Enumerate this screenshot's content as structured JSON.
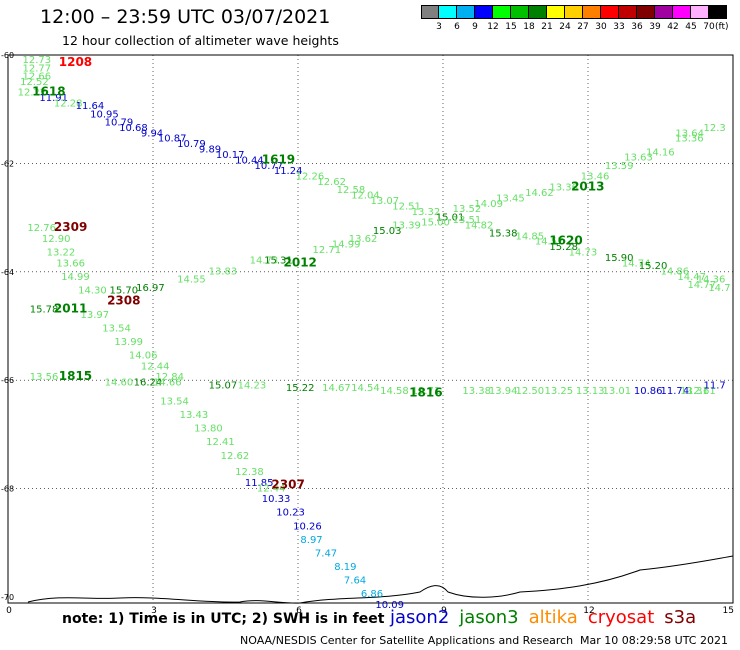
{
  "header": {
    "title": "12:00 – 23:59 UTC 03/07/2021",
    "subtitle": "12 hour collection of altimeter wave heights"
  },
  "scale": {
    "unit": "(ft)",
    "bins": [
      {
        "label": "3",
        "color": "#808080"
      },
      {
        "label": "6",
        "color": "#00ffff"
      },
      {
        "label": "9",
        "color": "#00b0f0"
      },
      {
        "label": "12",
        "color": "#0000ff"
      },
      {
        "label": "15",
        "color": "#00ff00"
      },
      {
        "label": "18",
        "color": "#00c000"
      },
      {
        "label": "21",
        "color": "#008000"
      },
      {
        "label": "24",
        "color": "#ffff00"
      },
      {
        "label": "27",
        "color": "#ffd000"
      },
      {
        "label": "30",
        "color": "#ff8000"
      },
      {
        "label": "33",
        "color": "#ff0000"
      },
      {
        "label": "36",
        "color": "#c00000"
      },
      {
        "label": "39",
        "color": "#800000"
      },
      {
        "label": "42",
        "color": "#a000a0"
      },
      {
        "label": "45",
        "color": "#ff00ff"
      },
      {
        "label": "70",
        "color": "#ffb0ff"
      },
      {
        "label": "",
        "color": "#000000"
      }
    ]
  },
  "axes": {
    "x_ticks": [
      "0",
      "3",
      "6",
      "9",
      "12",
      "15"
    ],
    "y_ticks": [
      "-60",
      "-62",
      "-64",
      "-66",
      "-68",
      "-70"
    ]
  },
  "map": {
    "lon_range": [
      0,
      15
    ],
    "lat_range": [
      -60,
      -70
    ],
    "colors": {
      "blue": "#0000cc",
      "cyan": "#00a8e0",
      "lightgreen": "#66e066",
      "green": "#008000",
      "darkred": "#800000",
      "red": "#ff0000"
    },
    "time_labels": [
      {
        "text": "1208",
        "lon": 1.05,
        "lat": -60.2,
        "color": "red"
      },
      {
        "text": "1618",
        "lon": 0.5,
        "lat": -60.75,
        "color": "green"
      },
      {
        "text": "1619",
        "lon": 5.25,
        "lat": -62.0,
        "color": "green"
      },
      {
        "text": "2013",
        "lon": 11.65,
        "lat": -62.5,
        "color": "green"
      },
      {
        "text": "2309",
        "lon": 0.95,
        "lat": -63.25,
        "color": "darkred"
      },
      {
        "text": "1620",
        "lon": 11.2,
        "lat": -63.5,
        "color": "green"
      },
      {
        "text": "2012",
        "lon": 5.7,
        "lat": -63.9,
        "color": "green"
      },
      {
        "text": "2308",
        "lon": 2.05,
        "lat": -64.6,
        "color": "darkred"
      },
      {
        "text": "2011",
        "lon": 0.95,
        "lat": -64.75,
        "color": "green"
      },
      {
        "text": "1815",
        "lon": 1.05,
        "lat": -66.0,
        "color": "green"
      },
      {
        "text": "1816",
        "lon": 8.3,
        "lat": -66.3,
        "color": "green"
      },
      {
        "text": "2307",
        "lon": 5.45,
        "lat": -68.0,
        "color": "darkred"
      }
    ],
    "value_labels": [
      {
        "text": "12.73",
        "lon": 0.3,
        "lat": -60.15,
        "color": "lightgreen"
      },
      {
        "text": "12.77",
        "lon": 0.3,
        "lat": -60.3,
        "color": "lightgreen"
      },
      {
        "text": "12.66",
        "lon": 0.3,
        "lat": -60.45,
        "color": "lightgreen"
      },
      {
        "text": "12.52",
        "lon": 0.25,
        "lat": -60.55,
        "color": "lightgreen"
      },
      {
        "text": "12.22",
        "lon": 0.2,
        "lat": -60.75,
        "color": "lightgreen"
      },
      {
        "text": "11.91",
        "lon": 0.65,
        "lat": -60.85,
        "color": "blue"
      },
      {
        "text": "12.28",
        "lon": 0.95,
        "lat": -60.95,
        "color": "lightgreen"
      },
      {
        "text": "11.64",
        "lon": 1.4,
        "lat": -61.0,
        "color": "blue"
      },
      {
        "text": "10.95",
        "lon": 1.7,
        "lat": -61.15,
        "color": "blue"
      },
      {
        "text": "10.79",
        "lon": 2.0,
        "lat": -61.3,
        "color": "blue"
      },
      {
        "text": "10.68",
        "lon": 2.3,
        "lat": -61.4,
        "color": "blue"
      },
      {
        "text": "9.94",
        "lon": 2.75,
        "lat": -61.5,
        "color": "blue"
      },
      {
        "text": "10.87",
        "lon": 3.1,
        "lat": -61.6,
        "color": "blue"
      },
      {
        "text": "10.79",
        "lon": 3.5,
        "lat": -61.7,
        "color": "blue"
      },
      {
        "text": "9.89",
        "lon": 3.95,
        "lat": -61.8,
        "color": "blue"
      },
      {
        "text": "10.17",
        "lon": 4.3,
        "lat": -61.9,
        "color": "blue"
      },
      {
        "text": "10.44",
        "lon": 4.7,
        "lat": -62.0,
        "color": "blue"
      },
      {
        "text": "10.77",
        "lon": 5.1,
        "lat": -62.1,
        "color": "blue"
      },
      {
        "text": "11.24",
        "lon": 5.5,
        "lat": -62.2,
        "color": "blue"
      },
      {
        "text": "12.26",
        "lon": 5.95,
        "lat": -62.3,
        "color": "lightgreen"
      },
      {
        "text": "12.62",
        "lon": 6.4,
        "lat": -62.4,
        "color": "lightgreen"
      },
      {
        "text": "12.58",
        "lon": 6.8,
        "lat": -62.55,
        "color": "lightgreen"
      },
      {
        "text": "12.04",
        "lon": 7.1,
        "lat": -62.65,
        "color": "lightgreen"
      },
      {
        "text": "13.07",
        "lon": 7.5,
        "lat": -62.75,
        "color": "lightgreen"
      },
      {
        "text": "12.51",
        "lon": 7.95,
        "lat": -62.85,
        "color": "lightgreen"
      },
      {
        "text": "13.32",
        "lon": 8.35,
        "lat": -62.95,
        "color": "lightgreen"
      },
      {
        "text": "15.01",
        "lon": 8.85,
        "lat": -63.05,
        "color": "green"
      },
      {
        "text": "13.51",
        "lon": 9.2,
        "lat": -63.1,
        "color": "lightgreen"
      },
      {
        "text": "14.82",
        "lon": 9.45,
        "lat": -63.2,
        "color": "lightgreen"
      },
      {
        "text": "15.38",
        "lon": 9.95,
        "lat": -63.35,
        "color": "green"
      },
      {
        "text": "14.85",
        "lon": 10.5,
        "lat": -63.4,
        "color": "lightgreen"
      },
      {
        "text": "14.57",
        "lon": 10.9,
        "lat": -63.5,
        "color": "lightgreen"
      },
      {
        "text": "15.28",
        "lon": 11.2,
        "lat": -63.6,
        "color": "green"
      },
      {
        "text": "14.73",
        "lon": 11.6,
        "lat": -63.7,
        "color": "lightgreen"
      },
      {
        "text": "15.90",
        "lon": 12.35,
        "lat": -63.8,
        "color": "green"
      },
      {
        "text": "14.74",
        "lon": 12.7,
        "lat": -63.9,
        "color": "lightgreen"
      },
      {
        "text": "15.20",
        "lon": 13.05,
        "lat": -63.95,
        "color": "green"
      },
      {
        "text": "14.86",
        "lon": 13.5,
        "lat": -64.05,
        "color": "lightgreen"
      },
      {
        "text": "14.47",
        "lon": 13.85,
        "lat": -64.15,
        "color": "lightgreen"
      },
      {
        "text": "14.36",
        "lon": 14.25,
        "lat": -64.2,
        "color": "lightgreen"
      },
      {
        "text": "14.77",
        "lon": 14.65,
        "lat": -64.3,
        "color": "lightgreen"
      },
      {
        "text": "14.7",
        "lon": 14.95,
        "lat": -64.35,
        "color": "lightgreen"
      },
      {
        "text": "12.76",
        "lon": 0.4,
        "lat": -63.25,
        "color": "lightgreen"
      },
      {
        "text": "12.90",
        "lon": 0.7,
        "lat": -63.45,
        "color": "lightgreen"
      },
      {
        "text": "13.22",
        "lon": 0.8,
        "lat": -63.7,
        "color": "lightgreen"
      },
      {
        "text": "13.66",
        "lon": 1.0,
        "lat": -63.9,
        "color": "lightgreen"
      },
      {
        "text": "14.99",
        "lon": 1.1,
        "lat": -64.15,
        "color": "lightgreen"
      },
      {
        "text": "14.30",
        "lon": 1.45,
        "lat": -64.4,
        "color": "lightgreen"
      },
      {
        "text": "15.70",
        "lon": 2.1,
        "lat": -64.4,
        "color": "green"
      },
      {
        "text": "16.97",
        "lon": 2.65,
        "lat": -64.35,
        "color": "green"
      },
      {
        "text": "15.78",
        "lon": 0.45,
        "lat": -64.75,
        "color": "green"
      },
      {
        "text": "13.97",
        "lon": 1.5,
        "lat": -64.85,
        "color": "lightgreen"
      },
      {
        "text": "13.54",
        "lon": 1.95,
        "lat": -65.1,
        "color": "lightgreen"
      },
      {
        "text": "13.99",
        "lon": 2.2,
        "lat": -65.35,
        "color": "lightgreen"
      },
      {
        "text": "14.06",
        "lon": 2.5,
        "lat": -65.6,
        "color": "lightgreen"
      },
      {
        "text": "12.44",
        "lon": 2.75,
        "lat": -65.8,
        "color": "lightgreen"
      },
      {
        "text": "12.84",
        "lon": 3.05,
        "lat": -66.0,
        "color": "lightgreen"
      },
      {
        "text": "14.55",
        "lon": 3.5,
        "lat": -64.2,
        "color": "lightgreen"
      },
      {
        "text": "13.83",
        "lon": 4.15,
        "lat": -64.05,
        "color": "lightgreen"
      },
      {
        "text": "14.73",
        "lon": 5.0,
        "lat": -63.85,
        "color": "lightgreen"
      },
      {
        "text": "15.31",
        "lon": 5.3,
        "lat": -63.85,
        "color": "green"
      },
      {
        "text": "12.71",
        "lon": 6.3,
        "lat": -63.65,
        "color": "lightgreen"
      },
      {
        "text": "14.99",
        "lon": 6.7,
        "lat": -63.55,
        "color": "lightgreen"
      },
      {
        "text": "13.62",
        "lon": 7.05,
        "lat": -63.45,
        "color": "lightgreen"
      },
      {
        "text": "15.03",
        "lon": 7.55,
        "lat": -63.3,
        "color": "green"
      },
      {
        "text": "13.39",
        "lon": 7.95,
        "lat": -63.2,
        "color": "lightgreen"
      },
      {
        "text": "15.00",
        "lon": 8.55,
        "lat": -63.15,
        "color": "lightgreen"
      },
      {
        "text": "13.52",
        "lon": 9.2,
        "lat": -62.9,
        "color": "lightgreen"
      },
      {
        "text": "14.09",
        "lon": 9.65,
        "lat": -62.8,
        "color": "lightgreen"
      },
      {
        "text": "13.45",
        "lon": 10.1,
        "lat": -62.7,
        "color": "lightgreen"
      },
      {
        "text": "14.62",
        "lon": 10.7,
        "lat": -62.6,
        "color": "lightgreen"
      },
      {
        "text": "13.36",
        "lon": 11.2,
        "lat": -62.5,
        "color": "lightgreen"
      },
      {
        "text": "13.46",
        "lon": 11.85,
        "lat": -62.3,
        "color": "lightgreen"
      },
      {
        "text": "13.59",
        "lon": 12.35,
        "lat": -62.1,
        "color": "lightgreen"
      },
      {
        "text": "13.63",
        "lon": 12.75,
        "lat": -61.95,
        "color": "lightgreen"
      },
      {
        "text": "14.16",
        "lon": 13.2,
        "lat": -61.85,
        "color": "lightgreen"
      },
      {
        "text": "13.36",
        "lon": 13.8,
        "lat": -61.6,
        "color": "lightgreen"
      },
      {
        "text": "13.64",
        "lon": 14.4,
        "lat": -61.5,
        "color": "lightgreen"
      },
      {
        "text": "12.3",
        "lon": 14.85,
        "lat": -61.4,
        "color": "lightgreen"
      },
      {
        "text": "13.56",
        "lon": 0.45,
        "lat": -66.0,
        "color": "lightgreen"
      },
      {
        "text": "14.60",
        "lon": 2.0,
        "lat": -66.1,
        "color": "lightgreen"
      },
      {
        "text": "16.24",
        "lon": 2.6,
        "lat": -66.1,
        "color": "green"
      },
      {
        "text": "14.66",
        "lon": 3.0,
        "lat": -66.1,
        "color": "lightgreen"
      },
      {
        "text": "15.07",
        "lon": 4.15,
        "lat": -66.15,
        "color": "green"
      },
      {
        "text": "14.23",
        "lon": 4.75,
        "lat": -66.15,
        "color": "lightgreen"
      },
      {
        "text": "15.22",
        "lon": 5.75,
        "lat": -66.2,
        "color": "green"
      },
      {
        "text": "14.67",
        "lon": 6.5,
        "lat": -66.2,
        "color": "lightgreen"
      },
      {
        "text": "14.54",
        "lon": 7.1,
        "lat": -66.2,
        "color": "lightgreen"
      },
      {
        "text": "14.58",
        "lon": 7.7,
        "lat": -66.25,
        "color": "lightgreen"
      },
      {
        "text": "13.71",
        "lon": 8.35,
        "lat": -66.25,
        "color": "lightgreen"
      },
      {
        "text": "13.38",
        "lon": 9.4,
        "lat": -66.25,
        "color": "lightgreen"
      },
      {
        "text": "13.94",
        "lon": 9.95,
        "lat": -66.25,
        "color": "lightgreen"
      },
      {
        "text": "12.50",
        "lon": 10.5,
        "lat": -66.25,
        "color": "lightgreen"
      },
      {
        "text": "13.25",
        "lon": 11.1,
        "lat": -66.25,
        "color": "lightgreen"
      },
      {
        "text": "13.13",
        "lon": 11.75,
        "lat": -66.25,
        "color": "lightgreen"
      },
      {
        "text": "13.01",
        "lon": 12.3,
        "lat": -66.25,
        "color": "lightgreen"
      },
      {
        "text": "10.86",
        "lon": 12.95,
        "lat": -66.25,
        "color": "blue"
      },
      {
        "text": "11.74",
        "lon": 13.5,
        "lat": -66.25,
        "color": "blue"
      },
      {
        "text": "12.61",
        "lon": 14.05,
        "lat": -66.25,
        "color": "lightgreen"
      },
      {
        "text": "13.31",
        "lon": 14.5,
        "lat": -66.25,
        "color": "lightgreen"
      },
      {
        "text": "11.7",
        "lon": 14.85,
        "lat": -66.15,
        "color": "blue"
      },
      {
        "text": "13.54",
        "lon": 3.15,
        "lat": -66.45,
        "color": "lightgreen"
      },
      {
        "text": "13.43",
        "lon": 3.55,
        "lat": -66.7,
        "color": "lightgreen"
      },
      {
        "text": "13.80",
        "lon": 3.85,
        "lat": -66.95,
        "color": "lightgreen"
      },
      {
        "text": "12.41",
        "lon": 4.1,
        "lat": -67.2,
        "color": "lightgreen"
      },
      {
        "text": "12.62",
        "lon": 4.4,
        "lat": -67.45,
        "color": "lightgreen"
      },
      {
        "text": "12.38",
        "lon": 4.7,
        "lat": -67.75,
        "color": "lightgreen"
      },
      {
        "text": "11.85",
        "lon": 4.9,
        "lat": -67.95,
        "color": "blue"
      },
      {
        "text": "12.44",
        "lon": 5.15,
        "lat": -68.05,
        "color": "lightgreen"
      },
      {
        "text": "10.33",
        "lon": 5.25,
        "lat": -68.25,
        "color": "blue"
      },
      {
        "text": "10.23",
        "lon": 5.55,
        "lat": -68.5,
        "color": "blue"
      },
      {
        "text": "10.26",
        "lon": 5.9,
        "lat": -68.75,
        "color": "blue"
      },
      {
        "text": "8.97",
        "lon": 6.05,
        "lat": -69.0,
        "color": "cyan"
      },
      {
        "text": "7.47",
        "lon": 6.35,
        "lat": -69.25,
        "color": "cyan"
      },
      {
        "text": "8.19",
        "lon": 6.75,
        "lat": -69.5,
        "color": "cyan"
      },
      {
        "text": "7.64",
        "lon": 6.95,
        "lat": -69.75,
        "color": "cyan"
      },
      {
        "text": "6.86",
        "lon": 7.3,
        "lat": -70.0,
        "color": "cyan"
      },
      {
        "text": "10.09",
        "lon": 7.6,
        "lat": -70.2,
        "color": "blue"
      }
    ]
  },
  "footer": {
    "note": "note:  1) Time is in UTC; 2) SWH is in feet",
    "satellites": [
      {
        "name": "jason2",
        "color": "#0000cc"
      },
      {
        "name": "jason3",
        "color": "#008000"
      },
      {
        "name": "altika",
        "color": "#ff8c00"
      },
      {
        "name": "cryosat",
        "color": "#ff0000"
      },
      {
        "name": "s3a",
        "color": "#800000"
      }
    ],
    "credit": "NOAA/NESDIS Center for Satellite Applications and Research",
    "timestamp": "Mar 10 08:29:58 UTC 2021"
  }
}
